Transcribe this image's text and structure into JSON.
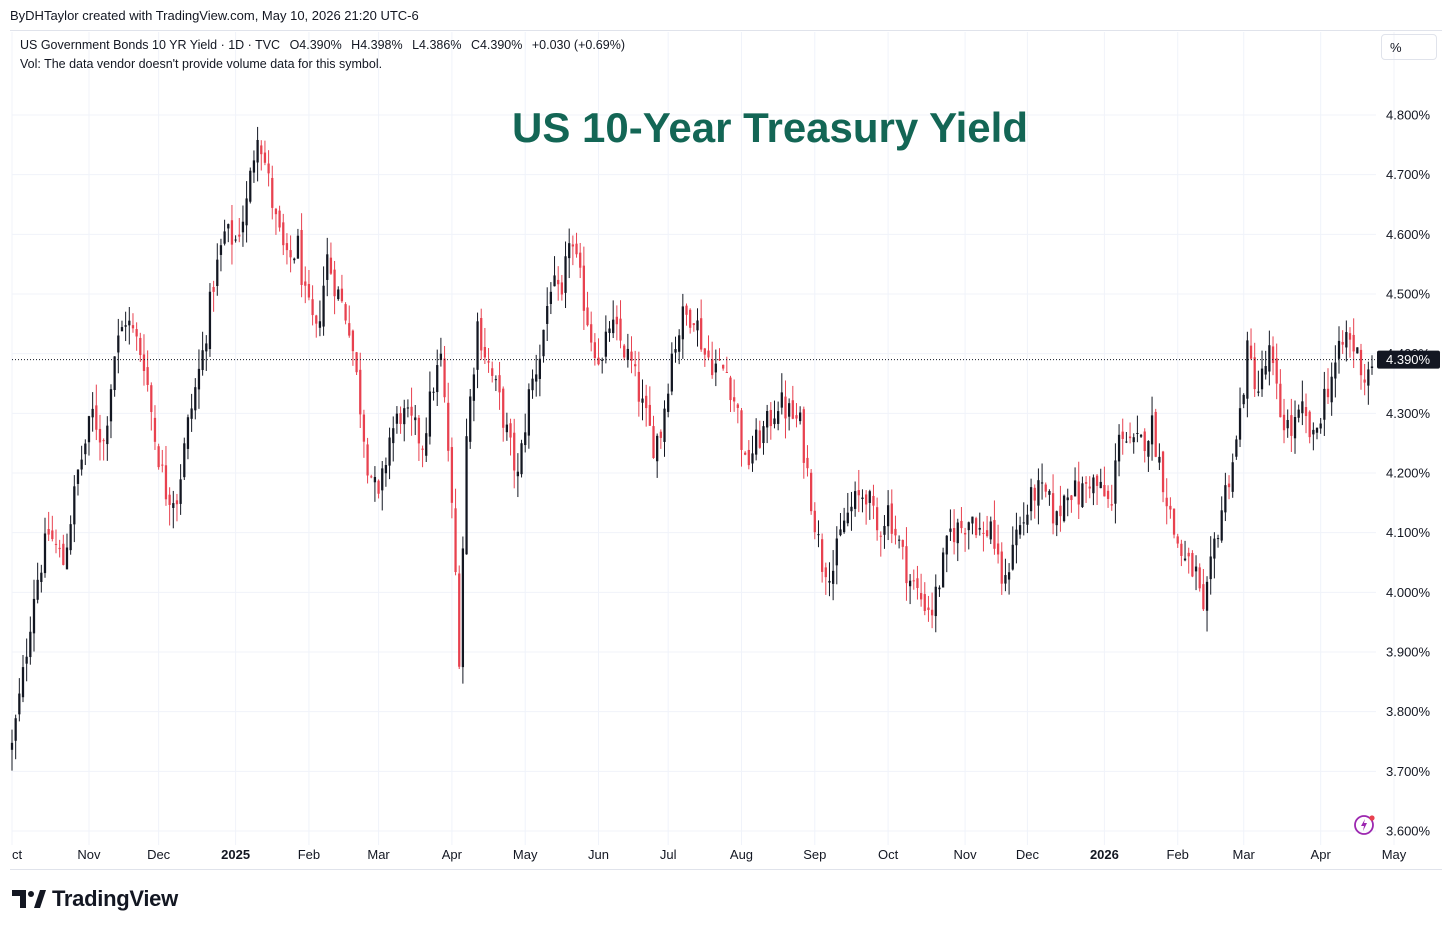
{
  "header": {
    "credit": "ByDHTaylor created with TradingView.com, May 10, 2026 21:20 UTC-6"
  },
  "legend": {
    "symbol": "US Government Bonds 10 YR Yield · 1D · TVC",
    "open": "O4.390%",
    "high": "H4.398%",
    "low": "L4.386%",
    "close": "C4.390%",
    "change": "+0.030 (+0.69%)",
    "vol_note": "Vol: The data vendor doesn't provide volume data for this symbol."
  },
  "unit_label": "%",
  "brand": {
    "name": "TradingView",
    "icon": "tradingview-logo-icon"
  },
  "corner_icon": "lightning-icon",
  "colors": {
    "up": "#131722",
    "down": "#e8414f",
    "title": "#136655",
    "grid": "#f0f3fa"
  },
  "chart_data": {
    "type": "candlestick",
    "title": "US 10-Year Treasury Yield",
    "ylim": [
      3.6,
      4.8
    ],
    "ytick_labels": [
      "4.800%",
      "4.700%",
      "4.600%",
      "4.500%",
      "4.400%",
      "4.300%",
      "4.200%",
      "4.100%",
      "4.000%",
      "3.900%",
      "3.800%",
      "3.700%",
      "3.600%"
    ],
    "yticks": [
      4.8,
      4.7,
      4.6,
      4.5,
      4.4,
      4.3,
      4.2,
      4.1,
      4.0,
      3.9,
      3.8,
      3.7,
      3.6
    ],
    "last_value": 4.39,
    "last_label": "4.390%",
    "xtick_labels": [
      "ct",
      "Nov",
      "Dec",
      "2025",
      "Feb",
      "Mar",
      "Apr",
      "May",
      "Jun",
      "Jul",
      "Aug",
      "Sep",
      "Oct",
      "Nov",
      "Dec",
      "2026",
      "Feb",
      "Mar",
      "Apr",
      "May"
    ],
    "xtick_bold": [
      false,
      false,
      false,
      true,
      false,
      false,
      false,
      false,
      false,
      false,
      false,
      false,
      false,
      false,
      false,
      true,
      false,
      false,
      false,
      false
    ],
    "xtick_index": [
      0,
      21,
      40,
      61,
      81,
      100,
      120,
      140,
      160,
      179,
      199,
      219,
      239,
      260,
      277,
      298,
      318,
      336,
      357,
      377
    ],
    "grid": true,
    "close_path": [
      [
        0,
        3.74
      ],
      [
        3,
        3.86
      ],
      [
        6,
        4.0
      ],
      [
        10,
        4.1
      ],
      [
        14,
        4.05
      ],
      [
        18,
        4.2
      ],
      [
        22,
        4.3
      ],
      [
        25,
        4.25
      ],
      [
        28,
        4.4
      ],
      [
        31,
        4.46
      ],
      [
        34,
        4.42
      ],
      [
        36,
        4.39
      ],
      [
        39,
        4.26
      ],
      [
        42,
        4.17
      ],
      [
        45,
        4.16
      ],
      [
        48,
        4.28
      ],
      [
        52,
        4.4
      ],
      [
        55,
        4.52
      ],
      [
        58,
        4.6
      ],
      [
        61,
        4.59
      ],
      [
        64,
        4.65
      ],
      [
        67,
        4.78
      ],
      [
        69,
        4.72
      ],
      [
        72,
        4.62
      ],
      [
        75,
        4.55
      ],
      [
        78,
        4.58
      ],
      [
        80,
        4.49
      ],
      [
        83,
        4.43
      ],
      [
        86,
        4.56
      ],
      [
        89,
        4.5
      ],
      [
        92,
        4.45
      ],
      [
        94,
        4.36
      ],
      [
        97,
        4.22
      ],
      [
        100,
        4.15
      ],
      [
        103,
        4.26
      ],
      [
        106,
        4.3
      ],
      [
        109,
        4.28
      ],
      [
        112,
        4.25
      ],
      [
        115,
        4.35
      ],
      [
        117,
        4.39
      ],
      [
        119,
        4.24
      ],
      [
        121,
        4.03
      ],
      [
        122,
        3.9
      ],
      [
        124,
        4.26
      ],
      [
        127,
        4.45
      ],
      [
        130,
        4.38
      ],
      [
        133,
        4.32
      ],
      [
        136,
        4.24
      ],
      [
        138,
        4.19
      ],
      [
        141,
        4.33
      ],
      [
        144,
        4.4
      ],
      [
        147,
        4.52
      ],
      [
        150,
        4.48
      ],
      [
        152,
        4.6
      ],
      [
        155,
        4.52
      ],
      [
        158,
        4.43
      ],
      [
        161,
        4.38
      ],
      [
        163,
        4.45
      ],
      [
        166,
        4.42
      ],
      [
        169,
        4.38
      ],
      [
        172,
        4.31
      ],
      [
        175,
        4.25
      ],
      [
        177,
        4.27
      ],
      [
        180,
        4.4
      ],
      [
        183,
        4.46
      ],
      [
        186,
        4.47
      ],
      [
        189,
        4.4
      ],
      [
        192,
        4.38
      ],
      [
        195,
        4.37
      ],
      [
        198,
        4.3
      ],
      [
        200,
        4.21
      ],
      [
        203,
        4.25
      ],
      [
        206,
        4.28
      ],
      [
        209,
        4.32
      ],
      [
        212,
        4.3
      ],
      [
        215,
        4.28
      ],
      [
        217,
        4.2
      ],
      [
        219,
        4.12
      ],
      [
        221,
        4.05
      ],
      [
        224,
        4.04
      ],
      [
        227,
        4.12
      ],
      [
        230,
        4.15
      ],
      [
        233,
        4.17
      ],
      [
        236,
        4.1
      ],
      [
        239,
        4.14
      ],
      [
        242,
        4.08
      ],
      [
        245,
        4.02
      ],
      [
        248,
        3.99
      ],
      [
        251,
        3.97
      ],
      [
        253,
        4.02
      ],
      [
        256,
        4.1
      ],
      [
        259,
        4.11
      ],
      [
        262,
        4.13
      ],
      [
        265,
        4.09
      ],
      [
        267,
        4.12
      ],
      [
        269,
        4.04
      ],
      [
        271,
        4.01
      ],
      [
        273,
        4.09
      ],
      [
        276,
        4.12
      ],
      [
        279,
        4.17
      ],
      [
        282,
        4.16
      ],
      [
        285,
        4.12
      ],
      [
        288,
        4.18
      ],
      [
        291,
        4.16
      ],
      [
        294,
        4.19
      ],
      [
        297,
        4.17
      ],
      [
        300,
        4.14
      ],
      [
        302,
        4.28
      ],
      [
        305,
        4.24
      ],
      [
        308,
        4.25
      ],
      [
        311,
        4.28
      ],
      [
        314,
        4.19
      ],
      [
        317,
        4.1
      ],
      [
        320,
        4.05
      ],
      [
        323,
        4.03
      ],
      [
        325,
        3.95
      ],
      [
        328,
        4.08
      ],
      [
        331,
        4.17
      ],
      [
        334,
        4.25
      ],
      [
        337,
        4.4
      ],
      [
        340,
        4.34
      ],
      [
        343,
        4.4
      ],
      [
        346,
        4.3
      ],
      [
        349,
        4.27
      ],
      [
        352,
        4.3
      ],
      [
        355,
        4.25
      ],
      [
        358,
        4.33
      ],
      [
        361,
        4.38
      ],
      [
        364,
        4.43
      ],
      [
        367,
        4.4
      ],
      [
        369,
        4.36
      ],
      [
        371,
        4.39
      ]
    ],
    "bar_count": 372
  }
}
